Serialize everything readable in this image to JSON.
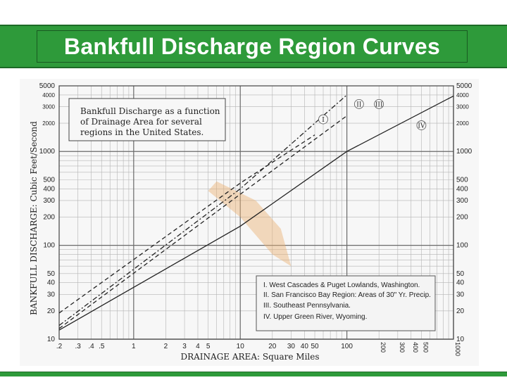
{
  "slide": {
    "title": "Bankfull Discharge Region Curves"
  },
  "chart_data": {
    "type": "line",
    "x_scale": "log",
    "y_scale": "log",
    "xlim": [
      0.2,
      1000
    ],
    "ylim": [
      10,
      5000
    ],
    "xlabel": "DRAINAGE AREA: Square Miles",
    "ylabel": "BANKFULL DISCHARGE: Cubic Feet/Second",
    "x_ticks": [
      {
        "value": 0.2,
        "label": ".2"
      },
      {
        "value": 0.3,
        "label": ".3"
      },
      {
        "value": 0.4,
        "label": ".4"
      },
      {
        "value": 0.5,
        "label": ".5"
      },
      {
        "value": 1,
        "label": "1"
      },
      {
        "value": 2,
        "label": "2"
      },
      {
        "value": 3,
        "label": "3"
      },
      {
        "value": 4,
        "label": "4"
      },
      {
        "value": 5,
        "label": "5"
      },
      {
        "value": 10,
        "label": "10"
      },
      {
        "value": 20,
        "label": "20"
      },
      {
        "value": 30,
        "label": "30"
      },
      {
        "value": 40,
        "label": "40"
      },
      {
        "value": 50,
        "label": "50"
      },
      {
        "value": 100,
        "label": "100"
      },
      {
        "value": 200,
        "label": "200"
      },
      {
        "value": 300,
        "label": "300"
      },
      {
        "value": 400,
        "label": "400"
      },
      {
        "value": 500,
        "label": "500"
      },
      {
        "value": 1000,
        "label": "1000"
      }
    ],
    "y_ticks": [
      {
        "value": 10,
        "label": "10"
      },
      {
        "value": 20,
        "label": "20"
      },
      {
        "value": 30,
        "label": "30"
      },
      {
        "value": 40,
        "label": "40"
      },
      {
        "value": 50,
        "label": "50"
      },
      {
        "value": 100,
        "label": "100"
      },
      {
        "value": 200,
        "label": "200"
      },
      {
        "value": 300,
        "label": "300"
      },
      {
        "value": 400,
        "label": "400"
      },
      {
        "value": 500,
        "label": "500"
      },
      {
        "value": 1000,
        "label": "1000"
      },
      {
        "value": 2000,
        "label": "2000"
      },
      {
        "value": 3000,
        "label": "3000"
      },
      {
        "value": 4000,
        "label": "4000"
      },
      {
        "value": 5000,
        "label": "5000"
      }
    ],
    "note": {
      "line1": "Bankfull Discharge as a function",
      "line2": "of  Drainage Area  for several",
      "line3": "regions in the United States."
    },
    "series": [
      {
        "id": "I",
        "name": "I.  West Cascades & Puget Lowlands, Washington.",
        "style": "dash-dot",
        "x": [
          0.2,
          10,
          100
        ],
        "y": [
          14,
          400,
          4000
        ],
        "marker_label": "I",
        "marker_x": 60,
        "marker_y": 2200
      },
      {
        "id": "II",
        "name": "II.  San Francisco Bay Region: Areas of 30\" Yr. Precip.",
        "style": "dashed",
        "x": [
          0.2,
          10,
          50
        ],
        "y": [
          19,
          460,
          1500
        ],
        "marker_label": "II",
        "marker_x": 130,
        "marker_y": 3200
      },
      {
        "id": "III",
        "name": "III.  Southeast Pennsylvania.",
        "style": "dashed",
        "x": [
          0.2,
          10,
          100
        ],
        "y": [
          13,
          350,
          2400
        ],
        "marker_label": "III",
        "marker_x": 200,
        "marker_y": 3200
      },
      {
        "id": "IV",
        "name": "IV.  Upper Green River, Wyoming.",
        "style": "solid",
        "x": [
          0.2,
          10,
          100,
          1000
        ],
        "y": [
          12.5,
          160,
          1000,
          3900
        ],
        "marker_label": "IV",
        "marker_x": 500,
        "marker_y": 1900
      }
    ],
    "colors": {
      "grid": "#6a6a6a",
      "line": "#222222",
      "note_bg": "#f7f7f7",
      "legend_bg": "#f4f4f4",
      "highlight": "#e8b070"
    }
  }
}
